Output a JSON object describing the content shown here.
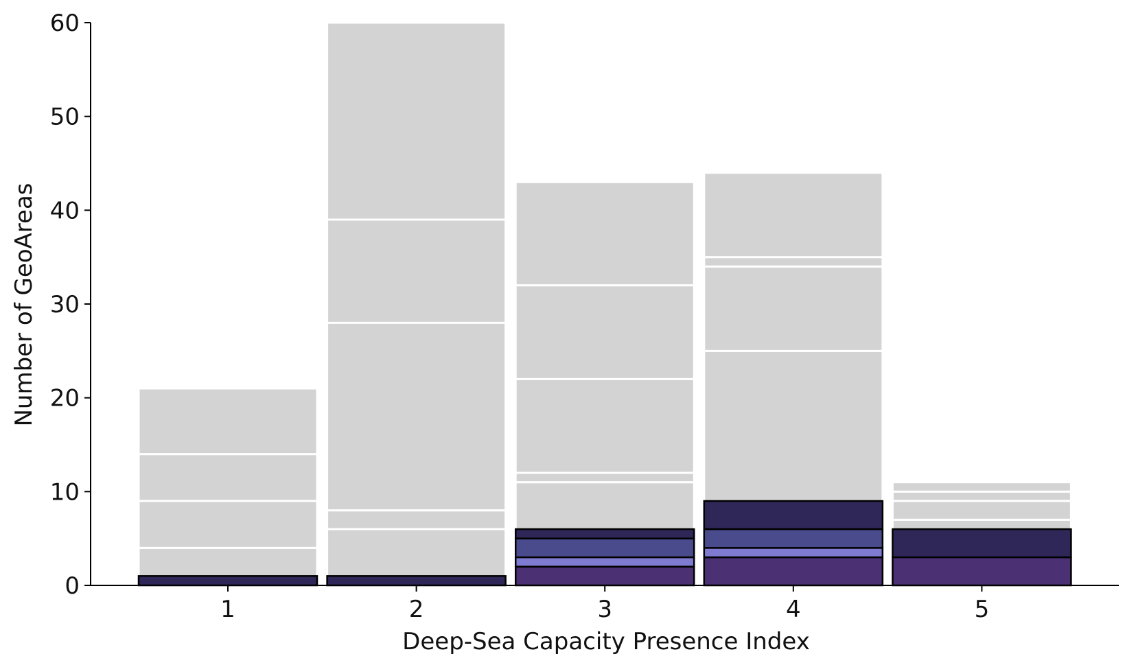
{
  "chart_data": {
    "type": "bar",
    "stacked": true,
    "title": "",
    "xlabel": "Deep-Sea Capacity Presence Index",
    "ylabel": "Number of GeoAreas",
    "categories": [
      "1",
      "2",
      "3",
      "4",
      "5"
    ],
    "ylim": [
      0,
      60
    ],
    "yticks": [
      0,
      10,
      20,
      30,
      40,
      50,
      60
    ],
    "grid": false,
    "legend": "none",
    "background_segments": [
      [
        4,
        5,
        5,
        7
      ],
      [
        6,
        2,
        20,
        11,
        21
      ],
      [
        11,
        1,
        10,
        10,
        11
      ],
      [
        25,
        9,
        1,
        9
      ],
      [
        7,
        2,
        1,
        1
      ]
    ],
    "highlight_segments": [
      [
        {
          "value": 1,
          "color": "#2e2757"
        }
      ],
      [
        {
          "value": 1,
          "color": "#2e2757"
        }
      ],
      [
        {
          "value": 2,
          "color": "#4b3073"
        },
        {
          "value": 1,
          "color": "#7f7bd1"
        },
        {
          "value": 2,
          "color": "#4a4b8c"
        },
        {
          "value": 1,
          "color": "#2e2757"
        }
      ],
      [
        {
          "value": 3,
          "color": "#4b3073"
        },
        {
          "value": 1,
          "color": "#7f7bd1"
        },
        {
          "value": 2,
          "color": "#4a4b8c"
        },
        {
          "value": 3,
          "color": "#2e2757"
        }
      ],
      [
        {
          "value": 3,
          "color": "#4b3073"
        },
        {
          "value": 3,
          "color": "#2e2757"
        }
      ]
    ],
    "background_color": "#d3d3d3",
    "edge_color": "#000000"
  }
}
